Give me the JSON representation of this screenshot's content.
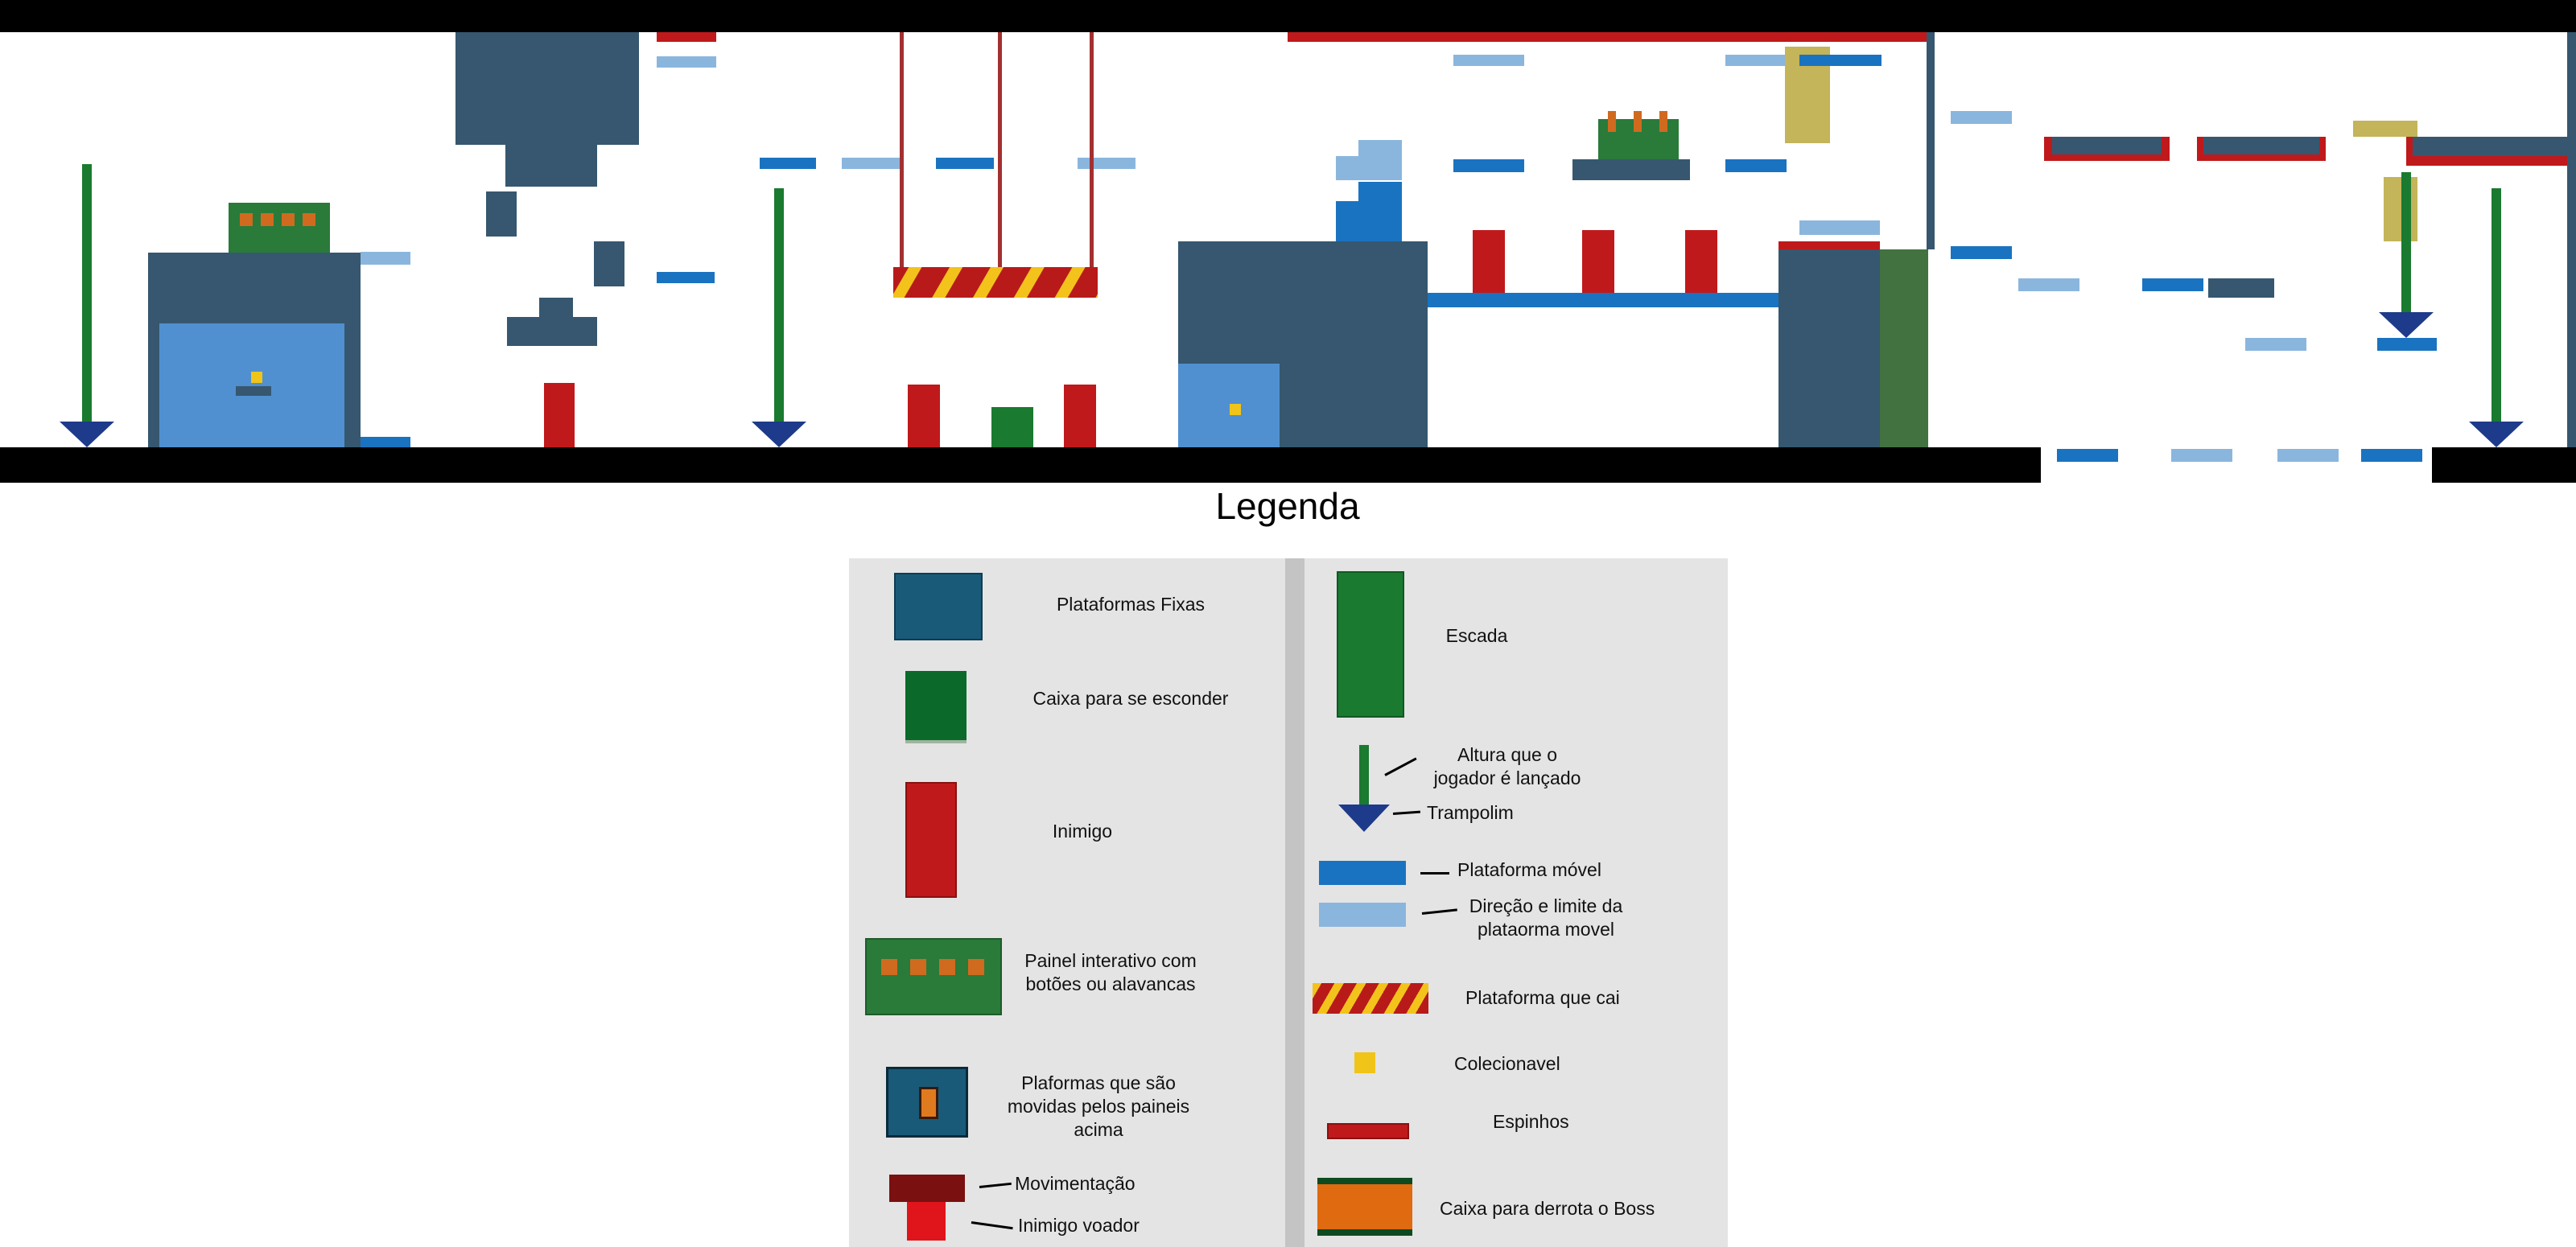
{
  "legend": {
    "title": "Legenda",
    "items": {
      "fixed_platforms": "Plataformas Fixas",
      "hide_box": "Caixa para se esconder",
      "enemy": "Inimigo",
      "panel": "Painel interativo com botões ou alavancas",
      "moved_platforms": "Plaformas que são movidas pelos paineis acima",
      "movement": "Movimentação",
      "flying_enemy": "Inimigo voador",
      "ladder": "Escada",
      "launch_height": "Altura que o jogador é lançado",
      "trampoline": "Trampolim",
      "moving_platform": "Plataforma móvel",
      "moving_limit": "Direção e limite da plataorma movel",
      "falling_platform": "Plataforma que cai",
      "collectible": "Colecionavel",
      "spikes": "Espinhos",
      "boss_box": "Caixa para derrota o Boss"
    }
  },
  "colors": {
    "fixed_platform": "#36576f",
    "fixed_platform_legend": "#195a78",
    "moved_platform": "#5090d0",
    "enemy": "#c0191b",
    "ladder": "#1a7a30",
    "ladder_dark": "#427240",
    "panel": "#2a7a3a",
    "button": "#d06a1f",
    "arrow_shaft": "#1a7a30",
    "arrow_head": "#1e3a8a",
    "moving_platform": "#1a73c0",
    "moving_limit": "#8ab6de",
    "hazard_red": "#b81a1a",
    "hazard_yellow": "#f3c31b",
    "collectible": "#f0c419",
    "olive": "#c4b45a",
    "floor": "#000000",
    "rope": "#a33030",
    "boss_box": "#e06a0f"
  }
}
